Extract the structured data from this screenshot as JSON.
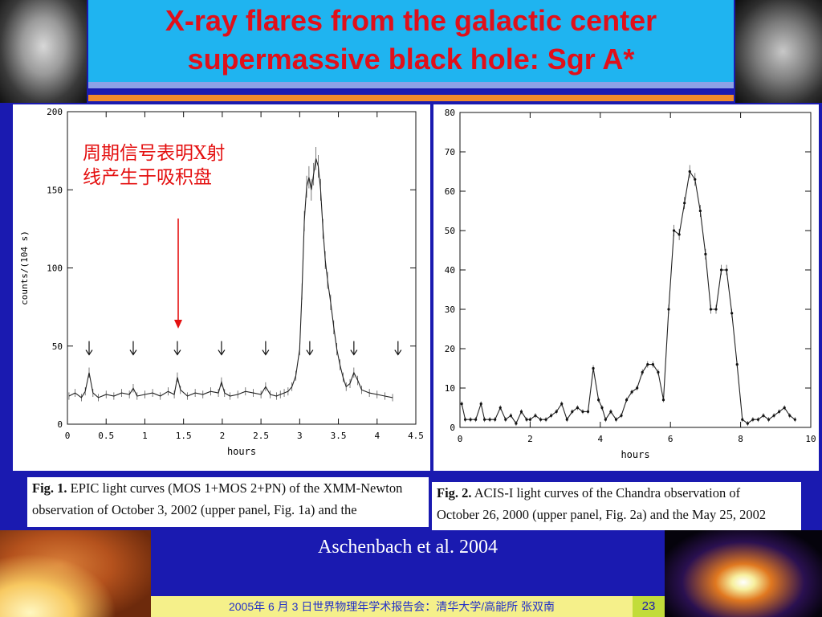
{
  "title": {
    "line1": "X-ray flares from the galactic center",
    "line2": "supermassive black hole: Sgr A*"
  },
  "annotation": "周期信号表明X射\n线产生于吸积盘",
  "colors": {
    "title": "#e0101a",
    "background": "#1a1ab0",
    "annotation": "#e41010"
  },
  "chart_data": [
    {
      "type": "line",
      "xlabel": "hours",
      "ylabel": "counts/(104 s)",
      "xlim": [
        0,
        4.5
      ],
      "ylim": [
        0,
        200
      ],
      "xticks": [
        0,
        0.5,
        1,
        1.5,
        2,
        2.5,
        3,
        3.5,
        4,
        4.5
      ],
      "xtick_labels": [
        "0",
        "0.5",
        "1",
        "1.5",
        "2",
        "2.5",
        "3",
        "3.5",
        "4",
        "4.5"
      ],
      "yticks": [
        0,
        50,
        100,
        150,
        200
      ],
      "ytick_labels": [
        "0",
        "50",
        "100",
        "150",
        "200"
      ],
      "arrows_x": [
        0.28,
        0.85,
        1.42,
        1.99,
        2.56,
        3.13,
        3.7,
        4.27
      ],
      "arrow_y": 47,
      "x": [
        0.02,
        0.1,
        0.18,
        0.23,
        0.28,
        0.33,
        0.4,
        0.5,
        0.6,
        0.7,
        0.8,
        0.85,
        0.9,
        1.0,
        1.1,
        1.2,
        1.3,
        1.38,
        1.42,
        1.46,
        1.55,
        1.65,
        1.75,
        1.85,
        1.95,
        1.99,
        2.03,
        2.1,
        2.2,
        2.3,
        2.4,
        2.5,
        2.56,
        2.62,
        2.7,
        2.75,
        2.8,
        2.85,
        2.9,
        2.95,
        3.0,
        3.03,
        3.06,
        3.09,
        3.12,
        3.15,
        3.18,
        3.21,
        3.24,
        3.27,
        3.3,
        3.33,
        3.36,
        3.4,
        3.44,
        3.48,
        3.52,
        3.56,
        3.6,
        3.65,
        3.7,
        3.75,
        3.8,
        3.9,
        4.0,
        4.1,
        4.2
      ],
      "y": [
        18,
        20,
        17,
        21,
        33,
        20,
        17,
        19,
        18,
        20,
        19,
        23,
        18,
        19,
        20,
        18,
        21,
        19,
        30,
        22,
        18,
        20,
        19,
        21,
        20,
        27,
        20,
        18,
        19,
        21,
        20,
        19,
        24,
        19,
        18,
        19,
        20,
        21,
        24,
        31,
        48,
        85,
        130,
        152,
        158,
        150,
        160,
        170,
        165,
        150,
        125,
        105,
        92,
        78,
        62,
        48,
        38,
        30,
        24,
        26,
        33,
        28,
        22,
        20,
        19,
        18,
        17
      ]
    },
    {
      "type": "line",
      "xlabel": "hours",
      "ylabel": "",
      "xlim": [
        0,
        10
      ],
      "ylim": [
        0,
        80
      ],
      "xticks": [
        0,
        2,
        4,
        6,
        8,
        10
      ],
      "xtick_labels": [
        "0",
        "2",
        "4",
        "6",
        "8",
        "10"
      ],
      "yticks": [
        0,
        10,
        20,
        30,
        40,
        50,
        60,
        70,
        80
      ],
      "ytick_labels": [
        "0",
        "10",
        "20",
        "30",
        "40",
        "50",
        "60",
        "70",
        "80"
      ],
      "x": [
        0.05,
        0.15,
        0.3,
        0.45,
        0.6,
        0.7,
        0.85,
        1.0,
        1.15,
        1.3,
        1.45,
        1.6,
        1.75,
        1.9,
        2.0,
        2.15,
        2.3,
        2.45,
        2.6,
        2.75,
        2.9,
        3.05,
        3.2,
        3.35,
        3.5,
        3.65,
        3.8,
        3.95,
        4.05,
        4.15,
        4.3,
        4.45,
        4.6,
        4.75,
        4.9,
        5.05,
        5.2,
        5.35,
        5.5,
        5.65,
        5.8,
        5.95,
        6.1,
        6.25,
        6.4,
        6.55,
        6.7,
        6.85,
        7.0,
        7.15,
        7.3,
        7.45,
        7.6,
        7.75,
        7.9,
        8.05,
        8.2,
        8.35,
        8.5,
        8.65,
        8.8,
        8.95,
        9.1,
        9.25,
        9.4,
        9.55
      ],
      "y": [
        6,
        2,
        2,
        2,
        6,
        2,
        2,
        2,
        5,
        2,
        3,
        1,
        4,
        2,
        2,
        3,
        2,
        2,
        3,
        4,
        6,
        2,
        4,
        5,
        4,
        4,
        15,
        7,
        5,
        2,
        4,
        2,
        3,
        7,
        9,
        10,
        14,
        16,
        16,
        14,
        7,
        30,
        50,
        49,
        57,
        65,
        63,
        55,
        44,
        30,
        30,
        40,
        40,
        29,
        16,
        2,
        1,
        2,
        2,
        3,
        2,
        3,
        4,
        5,
        3,
        2
      ]
    }
  ],
  "captions": {
    "fig1_label": "Fig. 1.",
    "fig1_line1": " EPIC light curves (MOS 1+MOS 2+PN) of the XMM-Newton",
    "fig1_line2": "observation of October 3, 2002 (upper panel, Fig. 1a) and the",
    "fig2_label": "Fig. 2.",
    "fig2_line1": " ACIS-I light curves of the Chandra observation of",
    "fig2_line2": "October 26, 2000 (upper panel, Fig. 2a) and the May 25, 2002"
  },
  "citation": "Aschenbach et al. 2004",
  "footer": {
    "text": "2005年 6 月 3 日世界物理年学术报告会：清华大学/高能所 张双南",
    "page_number": "23"
  }
}
